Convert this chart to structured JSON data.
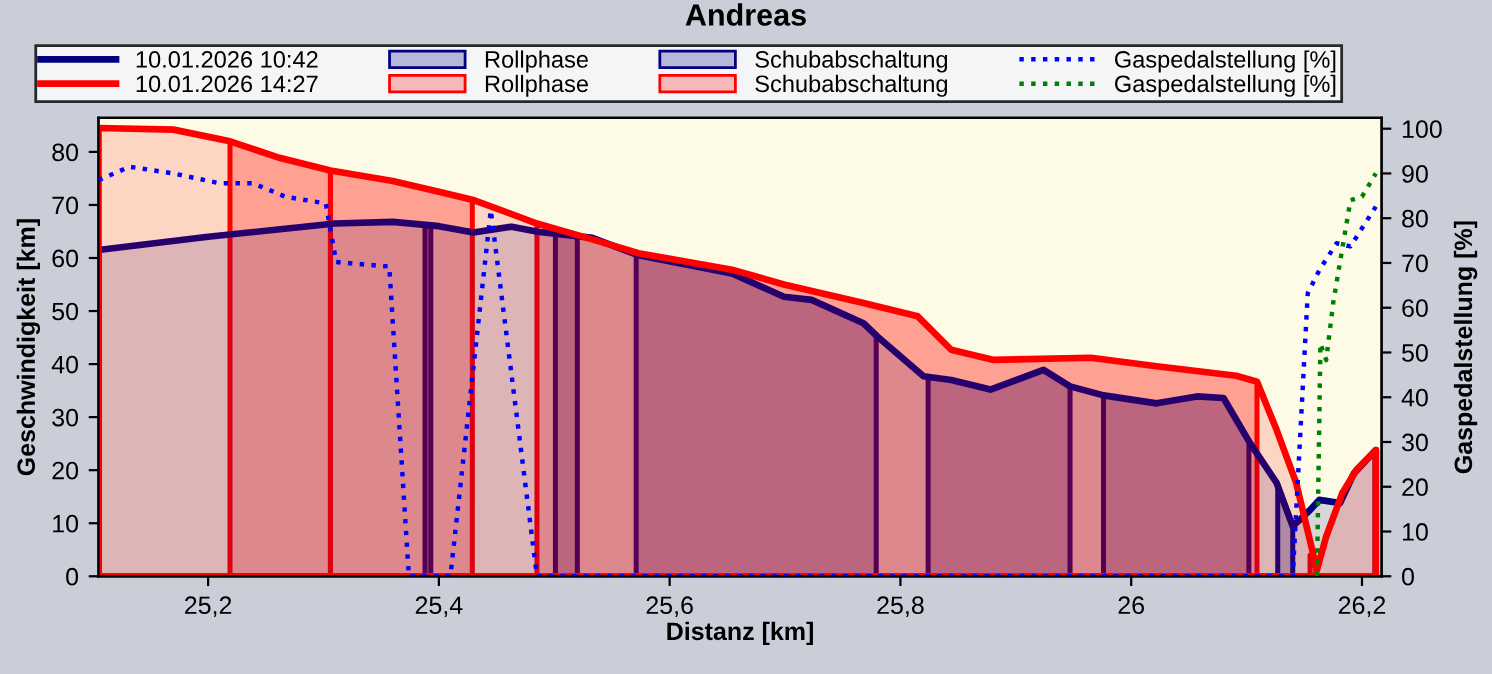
{
  "chart_data": {
    "type": "area",
    "title": "Andreas",
    "xlabel": "Distanz [km]",
    "ylabel": "Geschwindigkeit [km]",
    "y2label": "Gaspedalstellung [%]",
    "xlim": [
      25.105,
      26.217
    ],
    "xticks": [
      {
        "value": 25.2,
        "label": "25,2"
      },
      {
        "value": 25.4,
        "label": "25,4"
      },
      {
        "value": 25.6,
        "label": "25,6"
      },
      {
        "value": 25.8,
        "label": "25,8"
      },
      {
        "value": 26.0,
        "label": "26"
      },
      {
        "value": 26.2,
        "label": "26,2"
      }
    ],
    "ylim": [
      0,
      86.4
    ],
    "yticks": [
      0,
      10,
      20,
      30,
      40,
      50,
      60,
      70,
      80
    ],
    "y2lim": [
      0,
      102.4
    ],
    "y2ticks": [
      0,
      10,
      20,
      30,
      40,
      50,
      60,
      70,
      80,
      90,
      100
    ],
    "legend": "top",
    "grid": false,
    "series": [
      {
        "name": "10.01.2026 10:42",
        "color": "#000080",
        "x": [
          25.105,
          25.2,
          25.31,
          25.36,
          25.4,
          25.43,
          25.463,
          25.487,
          25.533,
          25.573,
          25.654,
          25.699,
          25.723,
          25.768,
          25.78,
          25.82,
          25.844,
          25.878,
          25.924,
          25.947,
          25.976,
          26.022,
          26.057,
          26.08,
          26.103,
          26.126,
          26.14,
          26.155,
          26.163,
          26.181,
          26.193,
          26.212
        ],
        "values": [
          61.5,
          64,
          66.5,
          66.8,
          66,
          64.8,
          65.9,
          64.9,
          63.8,
          60.5,
          57.1,
          52.7,
          52.1,
          47.7,
          45.2,
          37.7,
          37,
          35.2,
          38.9,
          35.8,
          34.1,
          32.6,
          33.9,
          33.6,
          25.1,
          17.6,
          9.4,
          12.5,
          14.4,
          13.8,
          19.4,
          23.8
        ]
      },
      {
        "name": "10.01.2026 14:27",
        "color": "#ff0000",
        "x": [
          25.105,
          25.17,
          25.219,
          25.26,
          25.306,
          25.36,
          25.4,
          25.429,
          25.485,
          25.533,
          25.573,
          25.654,
          25.699,
          25.768,
          25.815,
          25.844,
          25.88,
          25.965,
          26.022,
          26.091,
          26.109,
          26.126,
          26.143,
          26.161,
          26.169,
          26.183,
          26.195,
          26.212
        ],
        "values": [
          84.5,
          84.2,
          82,
          79,
          76.5,
          74.5,
          72.5,
          71,
          66.5,
          63.5,
          60.9,
          57.8,
          55,
          51.5,
          49,
          42.7,
          40.8,
          41.2,
          39.6,
          37.8,
          36.7,
          27.6,
          17.6,
          1.2,
          7.5,
          15.7,
          20,
          23.8
        ]
      },
      {
        "name": "Rollphase",
        "color": "#000080",
        "x": [
          25.388,
          25.393,
          25.45,
          25.501,
          25.52,
          26.0,
          26.127,
          26.14
        ],
        "values": [
          66,
          66,
          null,
          64.6,
          64.1,
          null,
          17.4,
          9.4
        ]
      },
      {
        "name": "Rollphase",
        "color": "#ff0000",
        "x": [
          25.306,
          25.36,
          25.4,
          25.429,
          25.8,
          26.155,
          26.16
        ],
        "values": [
          76.5,
          74.5,
          72.5,
          71,
          null,
          4,
          1.5
        ]
      },
      {
        "name": "Schubabschaltung",
        "color": "#000080",
        "x": [
          25.571,
          25.6,
          25.654,
          25.699,
          25.723,
          25.768,
          25.779,
          25.8,
          25.824,
          25.844,
          25.878,
          25.924,
          25.947,
          25.96,
          25.976,
          26.022,
          26.057,
          26.08,
          26.102
        ],
        "values": [
          60.6,
          59.5,
          57.1,
          52.7,
          52.1,
          47.7,
          45.5,
          null,
          37.5,
          37,
          35.2,
          38.9,
          35.8,
          null,
          34.1,
          32.6,
          33.9,
          33.6,
          25.5
        ]
      },
      {
        "name": "Schubabschaltung",
        "color": "#ff0000",
        "x": [
          25.219,
          25.26,
          25.306,
          25.4,
          25.485,
          25.533,
          25.573,
          25.654,
          25.699,
          25.768,
          25.815,
          25.844,
          25.88,
          25.965,
          26.022,
          26.091,
          26.109
        ],
        "values": [
          82,
          79,
          76.5,
          null,
          66.5,
          63.5,
          60.9,
          57.8,
          55,
          51.5,
          49,
          42.7,
          40.8,
          41.2,
          39.6,
          37.8,
          36.7
        ]
      },
      {
        "name": "Gaspedalstellung [%]",
        "type": "line",
        "axis": "y2",
        "line_style": "dotted",
        "color": "#0000ff",
        "x": [
          25.105,
          25.132,
          25.17,
          25.21,
          25.239,
          25.267,
          25.302,
          25.311,
          25.357,
          25.374,
          25.41,
          25.445,
          25.485,
          26.14,
          26.153,
          26.163,
          26.178,
          26.19,
          26.212
        ],
        "values": [
          88.5,
          91.5,
          90,
          87.8,
          87.8,
          84.8,
          83.3,
          70.2,
          69.2,
          0,
          0,
          81.8,
          0,
          0,
          63.2,
          68.4,
          74.4,
          73.7,
          82.6
        ]
      },
      {
        "name": "Gaspedalstellung [%]",
        "type": "line",
        "axis": "y2",
        "line_style": "dotted",
        "color": "#008000",
        "x": [
          26.161,
          26.164,
          26.169,
          26.175,
          26.19,
          26.2,
          26.212
        ],
        "values": [
          0,
          52,
          48.3,
          61,
          84,
          84.8,
          90
        ]
      }
    ]
  }
}
